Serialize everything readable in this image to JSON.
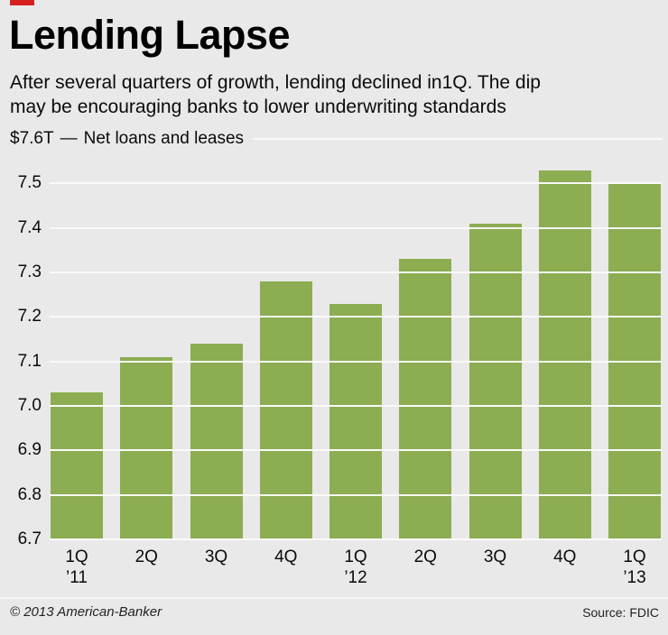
{
  "header": {
    "title": "Lending Lapse",
    "subtitle": "After several quarters of growth, lending declined in1Q. The dip\nmay be encouraging banks to lower underwriting standards"
  },
  "footer": {
    "credit": "© 2013 American-Banker",
    "source": "Source: FDIC"
  },
  "colors": {
    "background": "#e9e9e9",
    "bar": "#8cad51",
    "accent_red": "#d6201f",
    "gridline": "#fafafa"
  },
  "chart_data": {
    "type": "bar",
    "title": "Lending Lapse",
    "ymax_label": "$7.6T",
    "separator": "—",
    "series_label": "Net loans and leases",
    "categories": [
      "1Q",
      "2Q",
      "3Q",
      "4Q",
      "1Q",
      "2Q",
      "3Q",
      "4Q",
      "1Q"
    ],
    "year_labels": [
      "’11",
      "",
      "",
      "",
      "’12",
      "",
      "",
      "",
      "’13"
    ],
    "values": [
      7.03,
      7.11,
      7.14,
      7.28,
      7.23,
      7.33,
      7.41,
      7.53,
      7.5
    ],
    "ylim": [
      6.7,
      7.6
    ],
    "yticks": [
      7.5,
      7.4,
      7.3,
      7.2,
      7.1,
      7.0,
      6.9,
      6.8,
      6.7
    ],
    "bar_color": "#8cad51",
    "xlabel": "",
    "ylabel": "Net loans and leases ($T)",
    "legend": [],
    "grid": true,
    "source": "FDIC"
  }
}
